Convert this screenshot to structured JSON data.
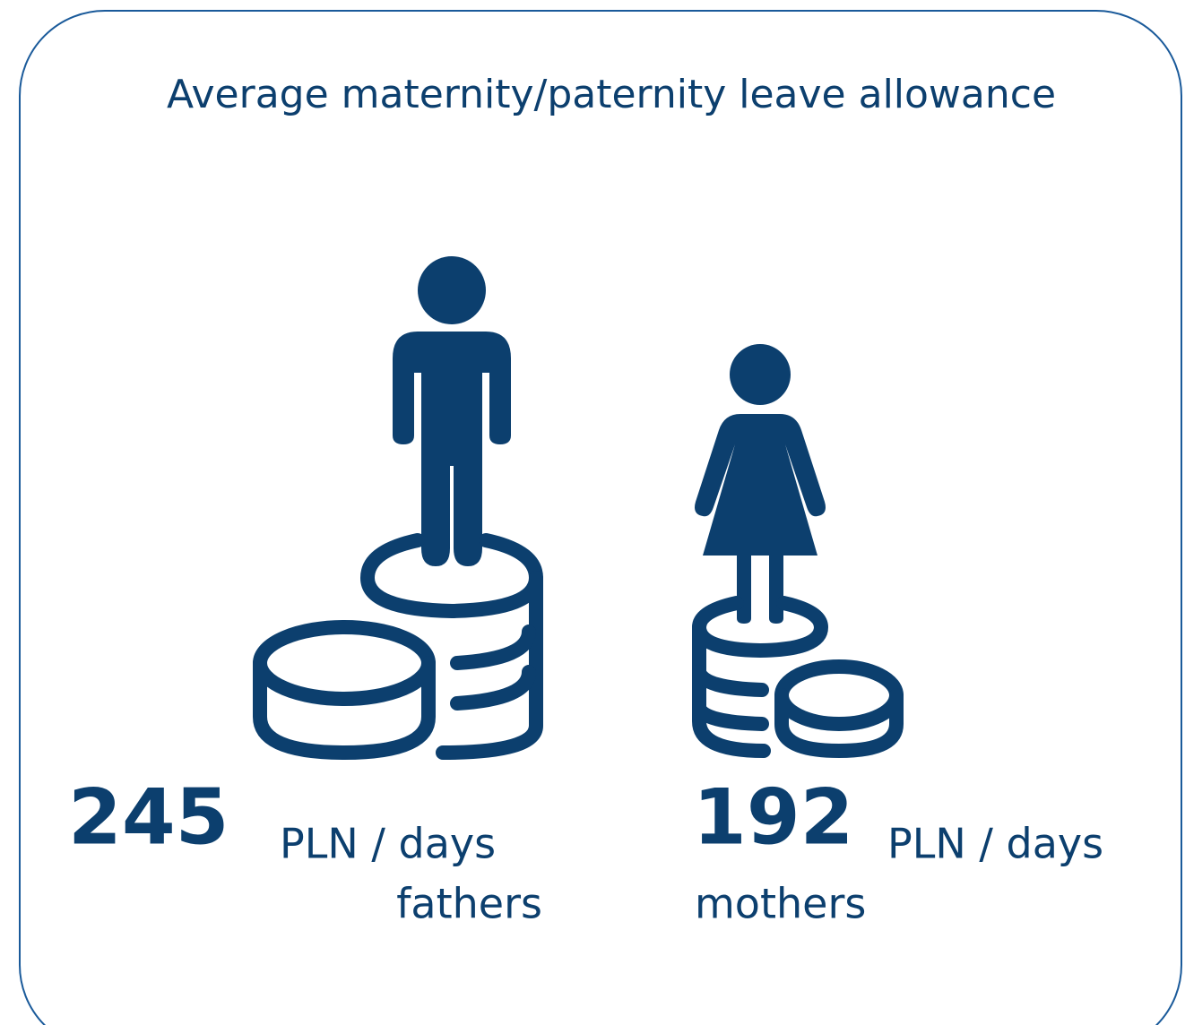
{
  "title": "Average maternity/paternity leave allowance",
  "items": [
    {
      "value": "245",
      "unit": "PLN / days",
      "label": "fathers"
    },
    {
      "value": "192",
      "unit": "PLN / days",
      "label": "mothers"
    }
  ]
}
